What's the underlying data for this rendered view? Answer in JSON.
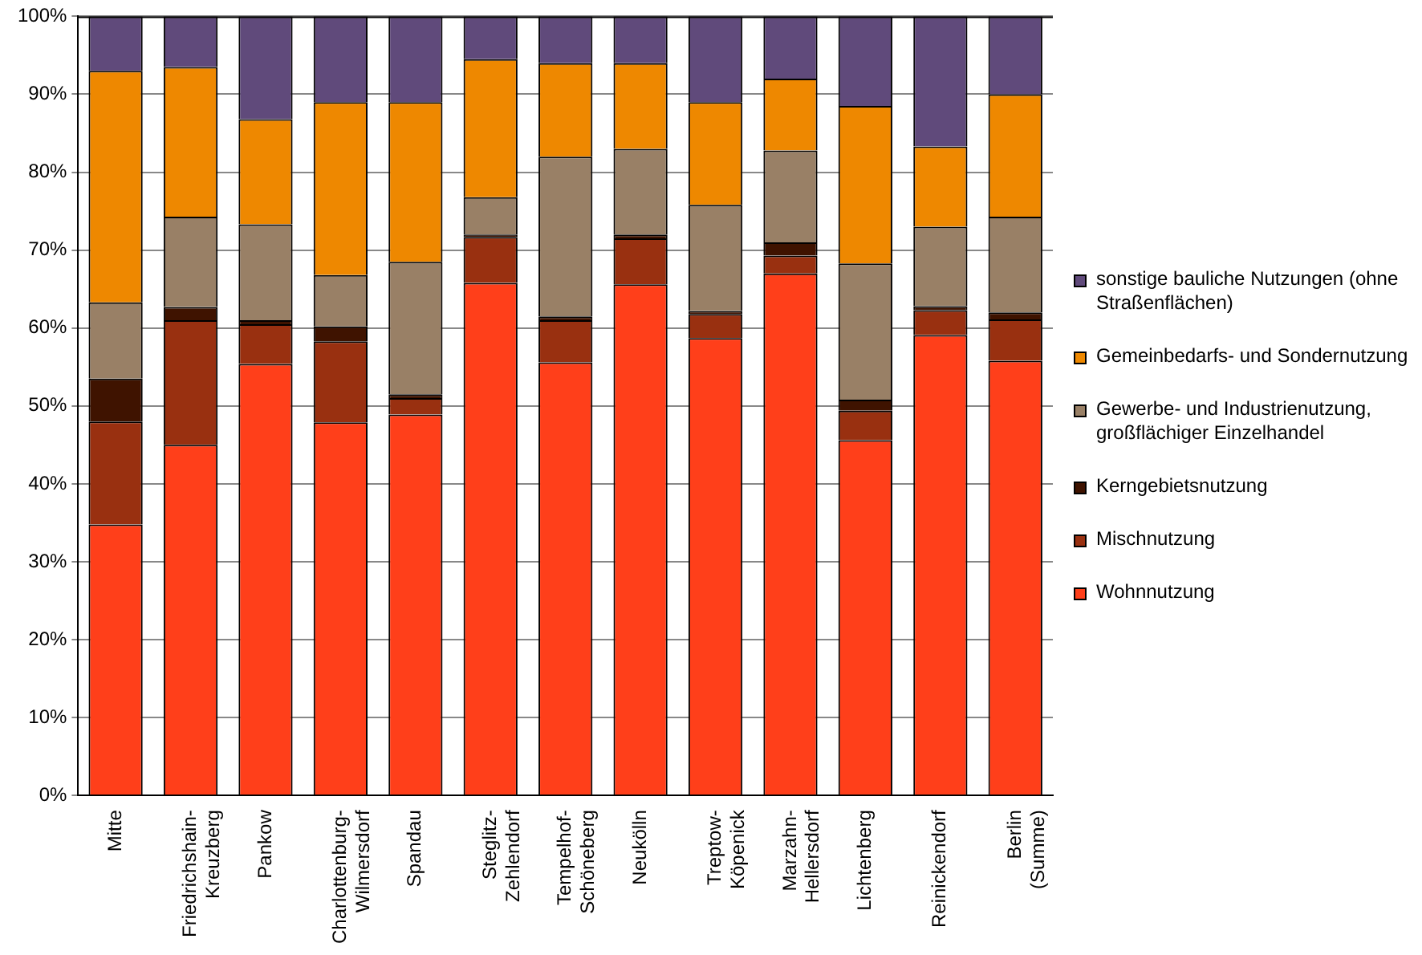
{
  "chart_data": {
    "type": "bar",
    "stacked": true,
    "categories": [
      "Mitte",
      "Friedrichshain-Kreuzberg",
      "Pankow",
      "Charlottenburg-Wilmersdorf",
      "Spandau",
      "Steglitz-Zehlendorf",
      "Tempelhof-Schöneberg",
      "Neukölln",
      "Treptow-Köpenick",
      "Marzahn-Hellersdorf",
      "Lichtenberg",
      "Reinickendorf",
      "Berlin (Summe)"
    ],
    "series": [
      {
        "name": "Wohnnutzung",
        "color": "#ff3f1a",
        "values": [
          34.8,
          45,
          55.4,
          47.9,
          48.9,
          65.8,
          55.6,
          65.6,
          58.7,
          67,
          45.6,
          59.1,
          55.8
        ]
      },
      {
        "name": "Mischnutzung",
        "color": "#993010",
        "values": [
          13.2,
          16,
          5.1,
          10.4,
          2.1,
          5.9,
          5.4,
          5.9,
          3.1,
          2.3,
          3.8,
          3.2,
          5.3
        ]
      },
      {
        "name": "Kerngebietsnutzung",
        "color": "#3f1300",
        "values": [
          5.5,
          1.7,
          0.5,
          1.9,
          0.5,
          0.3,
          0.5,
          0.5,
          0.4,
          1.7,
          1.4,
          0.5,
          0.9
        ]
      },
      {
        "name": "Gewerbe- und Industrienutzung, großflächiger Einzelhandel",
        "color": "#998066",
        "values": [
          9.8,
          11.6,
          12.3,
          6.6,
          17,
          4.8,
          20.5,
          11,
          13.6,
          11.8,
          17.5,
          10.2,
          12.3
        ]
      },
      {
        "name": "Gemeinbedarfs- und Sondernutzung",
        "color": "#ee8800",
        "values": [
          29.7,
          19.2,
          13.5,
          22.2,
          20.5,
          17.7,
          12,
          11,
          13.2,
          9.2,
          20.2,
          10.3,
          15.7
        ]
      },
      {
        "name": "sonstige bauliche Nutzungen (ohne Straßenflächen)",
        "color": "#604a7b",
        "values": [
          7,
          6.5,
          13.2,
          11,
          11,
          5.5,
          6,
          6,
          11,
          8,
          11.5,
          16.7,
          10
        ]
      }
    ],
    "ylim": [
      0,
      100
    ],
    "yticks": [
      {
        "value": 0,
        "label": "0%"
      },
      {
        "value": 10,
        "label": "10%"
      },
      {
        "value": 20,
        "label": "20%"
      },
      {
        "value": 30,
        "label": "30%"
      },
      {
        "value": 40,
        "label": "40%"
      },
      {
        "value": 50,
        "label": "50%"
      },
      {
        "value": 60,
        "label": "60%"
      },
      {
        "value": 70,
        "label": "70%"
      },
      {
        "value": 80,
        "label": "80%"
      },
      {
        "value": 90,
        "label": "90%"
      },
      {
        "value": 100,
        "label": "100%"
      }
    ],
    "grid": "y",
    "legend": "right"
  }
}
